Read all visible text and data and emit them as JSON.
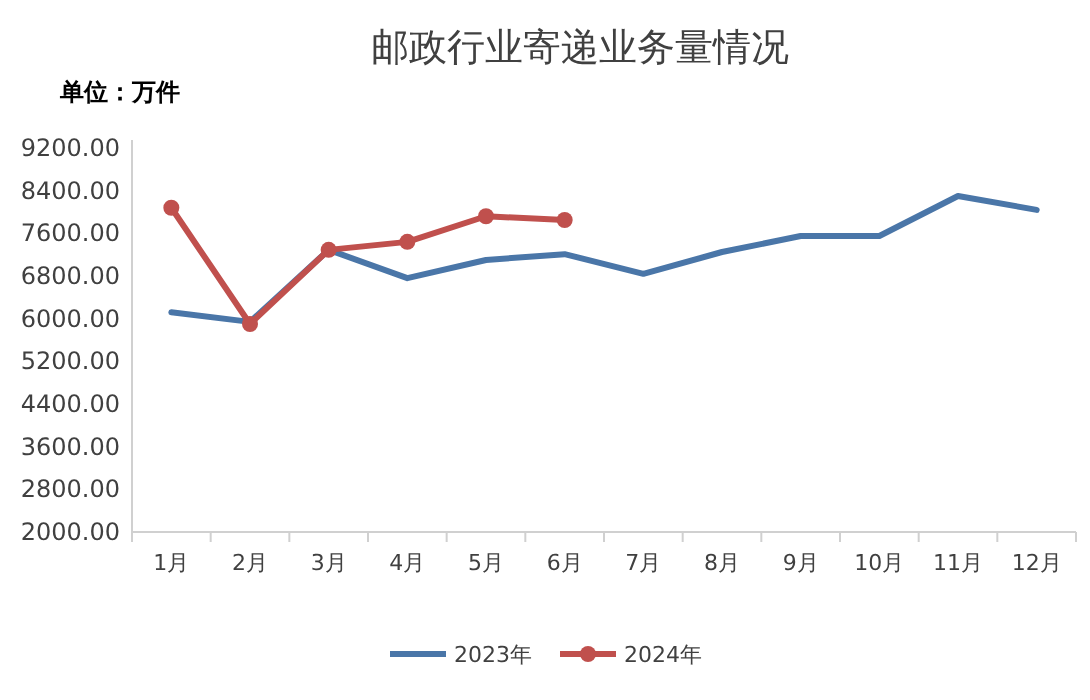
{
  "chart_data": {
    "type": "line",
    "title": "邮政行业寄递业务量情况",
    "ylabel": "单位：万件",
    "categories": [
      "1月",
      "2月",
      "3月",
      "4月",
      "5月",
      "6月",
      "7月",
      "8月",
      "9月",
      "10月",
      "11月",
      "12月"
    ],
    "series": [
      {
        "name": "2023年",
        "color": "#4a76a8",
        "marker": "none",
        "values": [
          6120,
          5940,
          7290,
          6760,
          7100,
          7210,
          6840,
          7250,
          7550,
          7550,
          8300,
          8040
        ]
      },
      {
        "name": "2024年",
        "color": "#c0504d",
        "marker": "circle",
        "values": [
          8080,
          5900,
          7290,
          7440,
          7920,
          7850,
          null,
          null,
          null,
          null,
          null,
          null
        ]
      }
    ],
    "ylim": [
      2000,
      9200
    ],
    "yticks": [
      {
        "value": 2000,
        "label": "2000.00"
      },
      {
        "value": 2800,
        "label": "2800.00"
      },
      {
        "value": 3600,
        "label": "3600.00"
      },
      {
        "value": 4400,
        "label": "4400.00"
      },
      {
        "value": 5200,
        "label": "5200.00"
      },
      {
        "value": 6000,
        "label": "6000.00"
      },
      {
        "value": 6800,
        "label": "6800.00"
      },
      {
        "value": 7600,
        "label": "7600.00"
      },
      {
        "value": 8400,
        "label": "8400.00"
      },
      {
        "value": 9200,
        "label": "9200.00"
      }
    ],
    "grid": false,
    "legend": "bottom",
    "line_style": "solid"
  }
}
